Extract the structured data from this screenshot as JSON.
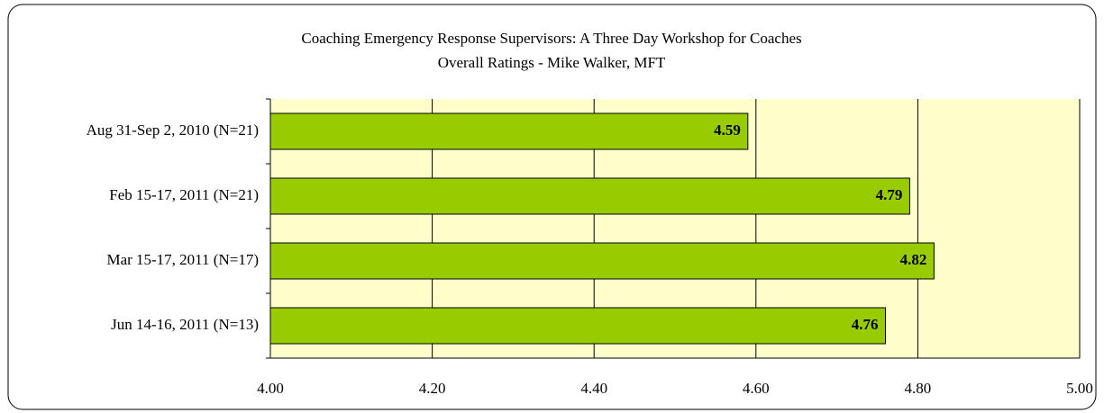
{
  "chart_data": {
    "type": "bar",
    "orientation": "horizontal",
    "title": "Coaching Emergency Response Supervisors: A Three Day Workshop for Coaches",
    "subtitle": "Overall Ratings - Mike Walker, MFT",
    "categories": [
      "Aug 31-Sep 2, 2010 (N=21)",
      "Feb 15-17, 2011 (N=21)",
      "Mar 15-17, 2011 (N=17)",
      "Jun 14-16, 2011 (N=13)"
    ],
    "values": [
      4.59,
      4.79,
      4.82,
      4.76
    ],
    "color": "#99cc00",
    "xlim": [
      4,
      5
    ],
    "xticks": [
      {
        "value": 4,
        "label": "4.00"
      },
      {
        "value": 4.2,
        "label": "4.20"
      },
      {
        "value": 4.4,
        "label": "4.40"
      },
      {
        "value": 4.6,
        "label": "4.60"
      },
      {
        "value": 4.8,
        "label": "4.80"
      },
      {
        "value": 5,
        "label": "5.00"
      }
    ],
    "grid": true
  }
}
